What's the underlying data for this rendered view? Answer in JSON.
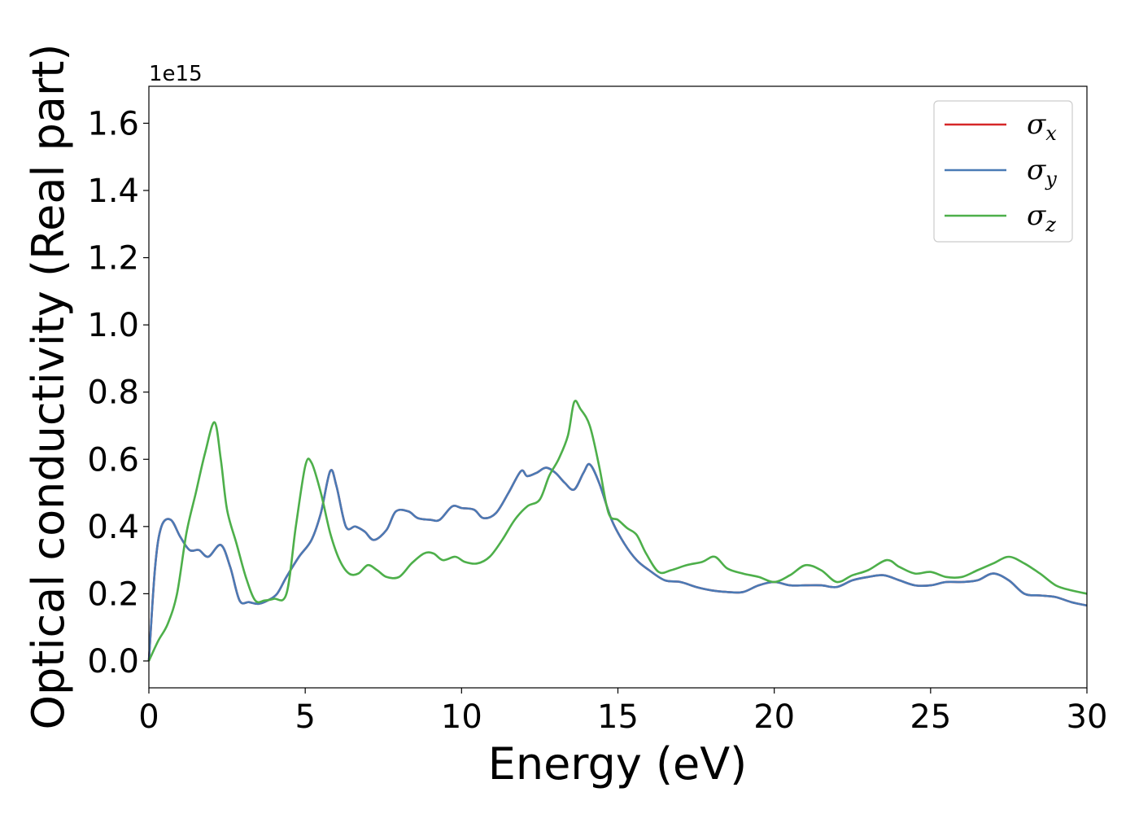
{
  "chart_data": {
    "type": "line",
    "title": "",
    "xlabel": "Energy (eV)",
    "ylabel": "Optical conductivity (Real part)",
    "y_offset_label": "1e15",
    "xlim": [
      0,
      30
    ],
    "ylim": [
      -0.08,
      1.71
    ],
    "xticks": [
      0,
      5,
      10,
      15,
      20,
      25,
      30
    ],
    "xtick_labels": [
      "0",
      "5",
      "10",
      "15",
      "20",
      "25",
      "30"
    ],
    "yticks": [
      0.0,
      0.2,
      0.4,
      0.6,
      0.8,
      1.0,
      1.2,
      1.4,
      1.6
    ],
    "ytick_labels": [
      "0.0",
      "0.2",
      "0.4",
      "0.6",
      "0.8",
      "1.0",
      "1.2",
      "1.4",
      "1.6"
    ],
    "grid": false,
    "legend_position": "top-right",
    "series": [
      {
        "name": "σx",
        "name_base": "σ",
        "name_sub": "x",
        "color": "#d62728",
        "x": [
          0,
          0.2,
          0.4,
          0.7,
          1.0,
          1.3,
          1.6,
          1.9,
          2.3,
          2.6,
          2.9,
          3.2,
          3.5,
          3.8,
          4.1,
          4.4,
          4.8,
          5.2,
          5.5,
          5.8,
          6.0,
          6.3,
          6.6,
          6.9,
          7.2,
          7.6,
          7.9,
          8.3,
          8.6,
          9.0,
          9.3,
          9.7,
          10.0,
          10.4,
          10.7,
          11.1,
          11.5,
          11.9,
          12.1,
          12.4,
          12.7,
          13.0,
          13.3,
          13.6,
          13.9,
          14.1,
          14.4,
          14.8,
          15.2,
          15.6,
          16.0,
          16.5,
          17.0,
          17.5,
          18.0,
          18.5,
          19.0,
          19.5,
          20.0,
          20.5,
          21.0,
          21.5,
          22.0,
          22.5,
          23.0,
          23.5,
          24.0,
          24.5,
          25.0,
          25.5,
          26.0,
          26.5,
          27.0,
          27.5,
          28.0,
          28.5,
          29.0,
          29.5,
          30.0
        ],
        "values": [
          0.0,
          0.28,
          0.4,
          0.42,
          0.37,
          0.33,
          0.33,
          0.31,
          0.345,
          0.28,
          0.18,
          0.175,
          0.17,
          0.18,
          0.2,
          0.25,
          0.31,
          0.36,
          0.44,
          0.565,
          0.52,
          0.4,
          0.4,
          0.385,
          0.36,
          0.39,
          0.445,
          0.445,
          0.425,
          0.42,
          0.42,
          0.46,
          0.455,
          0.45,
          0.425,
          0.44,
          0.5,
          0.565,
          0.55,
          0.56,
          0.575,
          0.56,
          0.53,
          0.51,
          0.56,
          0.585,
          0.53,
          0.42,
          0.35,
          0.3,
          0.27,
          0.24,
          0.235,
          0.22,
          0.21,
          0.205,
          0.205,
          0.225,
          0.235,
          0.225,
          0.225,
          0.225,
          0.22,
          0.24,
          0.25,
          0.255,
          0.24,
          0.225,
          0.225,
          0.235,
          0.235,
          0.24,
          0.26,
          0.24,
          0.2,
          0.195,
          0.19,
          0.175,
          0.165
        ]
      },
      {
        "name": "σy",
        "name_base": "σ",
        "name_sub": "y",
        "color": "#4a7ab5",
        "x": [
          0,
          0.2,
          0.4,
          0.7,
          1.0,
          1.3,
          1.6,
          1.9,
          2.3,
          2.6,
          2.9,
          3.2,
          3.5,
          3.8,
          4.1,
          4.4,
          4.8,
          5.2,
          5.5,
          5.8,
          6.0,
          6.3,
          6.6,
          6.9,
          7.2,
          7.6,
          7.9,
          8.3,
          8.6,
          9.0,
          9.3,
          9.7,
          10.0,
          10.4,
          10.7,
          11.1,
          11.5,
          11.9,
          12.1,
          12.4,
          12.7,
          13.0,
          13.3,
          13.6,
          13.9,
          14.1,
          14.4,
          14.8,
          15.2,
          15.6,
          16.0,
          16.5,
          17.0,
          17.5,
          18.0,
          18.5,
          19.0,
          19.5,
          20.0,
          20.5,
          21.0,
          21.5,
          22.0,
          22.5,
          23.0,
          23.5,
          24.0,
          24.5,
          25.0,
          25.5,
          26.0,
          26.5,
          27.0,
          27.5,
          28.0,
          28.5,
          29.0,
          29.5,
          30.0
        ],
        "values": [
          0.0,
          0.28,
          0.4,
          0.42,
          0.37,
          0.33,
          0.33,
          0.31,
          0.345,
          0.28,
          0.18,
          0.175,
          0.17,
          0.18,
          0.2,
          0.25,
          0.31,
          0.36,
          0.44,
          0.565,
          0.52,
          0.4,
          0.4,
          0.385,
          0.36,
          0.39,
          0.445,
          0.445,
          0.425,
          0.42,
          0.42,
          0.46,
          0.455,
          0.45,
          0.425,
          0.44,
          0.5,
          0.565,
          0.55,
          0.56,
          0.575,
          0.56,
          0.53,
          0.51,
          0.56,
          0.585,
          0.53,
          0.42,
          0.35,
          0.3,
          0.27,
          0.24,
          0.235,
          0.22,
          0.21,
          0.205,
          0.205,
          0.225,
          0.235,
          0.225,
          0.225,
          0.225,
          0.22,
          0.24,
          0.25,
          0.255,
          0.24,
          0.225,
          0.225,
          0.235,
          0.235,
          0.24,
          0.26,
          0.24,
          0.2,
          0.195,
          0.19,
          0.175,
          0.165
        ]
      },
      {
        "name": "σz",
        "name_base": "σ",
        "name_sub": "z",
        "color": "#4daf4a",
        "x": [
          0,
          0.3,
          0.6,
          0.9,
          1.2,
          1.5,
          1.8,
          2.1,
          2.3,
          2.5,
          2.8,
          3.1,
          3.4,
          3.7,
          4.0,
          4.4,
          4.7,
          5.0,
          5.2,
          5.5,
          5.8,
          6.1,
          6.4,
          6.7,
          7.0,
          7.3,
          7.6,
          8.0,
          8.4,
          8.8,
          9.1,
          9.4,
          9.8,
          10.1,
          10.5,
          10.9,
          11.3,
          11.7,
          12.1,
          12.5,
          12.8,
          13.1,
          13.4,
          13.6,
          13.8,
          14.1,
          14.4,
          14.7,
          15.0,
          15.3,
          15.6,
          15.9,
          16.3,
          16.7,
          17.2,
          17.7,
          18.1,
          18.5,
          19.0,
          19.5,
          20.0,
          20.5,
          21.0,
          21.5,
          22.0,
          22.5,
          23.0,
          23.6,
          24.0,
          24.5,
          25.0,
          25.5,
          26.0,
          26.5,
          27.0,
          27.5,
          28.0,
          28.5,
          29.0,
          29.5,
          30.0
        ],
        "values": [
          0.0,
          0.06,
          0.11,
          0.2,
          0.38,
          0.5,
          0.62,
          0.71,
          0.6,
          0.45,
          0.35,
          0.25,
          0.18,
          0.18,
          0.185,
          0.2,
          0.4,
          0.58,
          0.59,
          0.5,
          0.38,
          0.3,
          0.26,
          0.26,
          0.285,
          0.27,
          0.25,
          0.25,
          0.29,
          0.32,
          0.32,
          0.3,
          0.31,
          0.295,
          0.29,
          0.31,
          0.36,
          0.42,
          0.46,
          0.48,
          0.55,
          0.6,
          0.67,
          0.77,
          0.75,
          0.7,
          0.58,
          0.44,
          0.42,
          0.395,
          0.375,
          0.32,
          0.265,
          0.27,
          0.285,
          0.295,
          0.31,
          0.275,
          0.26,
          0.25,
          0.235,
          0.255,
          0.285,
          0.27,
          0.235,
          0.255,
          0.27,
          0.3,
          0.28,
          0.26,
          0.265,
          0.25,
          0.25,
          0.27,
          0.29,
          0.31,
          0.29,
          0.26,
          0.225,
          0.21,
          0.2
        ]
      }
    ]
  }
}
